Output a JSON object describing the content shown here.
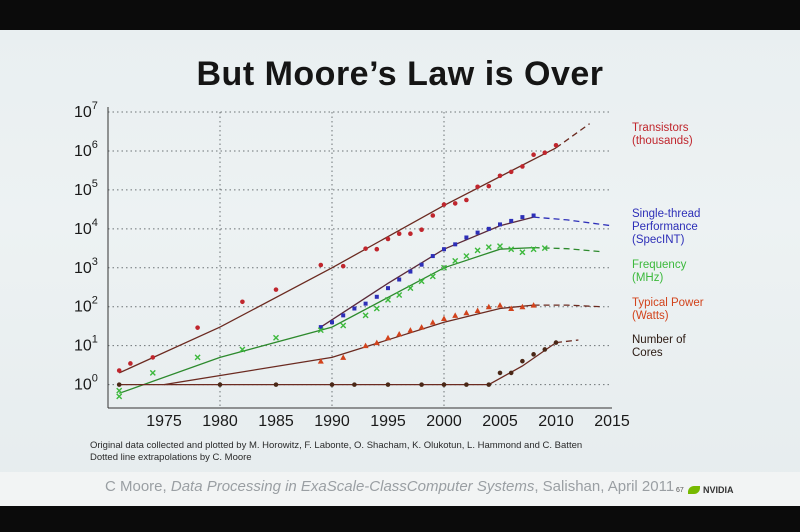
{
  "slide": {
    "title": "But Moore’s Law is Over",
    "credit_line1": "Original data collected and plotted by M. Horowitz, F. Labonte, O. Shacham, K. Olukotun, L. Hammond and C. Batten",
    "credit_line2": "Dotted line extrapolations by C. Moore",
    "citation_author": "C Moore, ",
    "citation_title": "Data Processing in ExaScale-ClassComputer Systems",
    "citation_rest": ", Salishan, April 2011",
    "slide_number": "67",
    "brand": "NVIDIA",
    "brand_icon": "nvidia-eye-icon"
  },
  "chart_data": {
    "type": "scatter",
    "title": "But Moore’s Law is Over",
    "xlim": [
      1970,
      2015
    ],
    "ylim_log10": [
      -0.6,
      7
    ],
    "y_scale": "log",
    "x_ticks": [
      "1975",
      "1980",
      "1985",
      "1990",
      "1995",
      "2000",
      "2005",
      "2010",
      "2015"
    ],
    "y_ticks": [
      {
        "base": "10",
        "exp": "0"
      },
      {
        "base": "10",
        "exp": "1"
      },
      {
        "base": "10",
        "exp": "2"
      },
      {
        "base": "10",
        "exp": "3"
      },
      {
        "base": "10",
        "exp": "4"
      },
      {
        "base": "10",
        "exp": "5"
      },
      {
        "base": "10",
        "exp": "6"
      },
      {
        "base": "10",
        "exp": "7"
      }
    ],
    "grid": "dotted",
    "legend_position": "right",
    "series": [
      {
        "name": "Transistors (thousands)",
        "label_lines": [
          "Transistors",
          "(thousands)"
        ],
        "color": "#c0262d",
        "marker": "dot",
        "points": [
          [
            1971,
            2.3
          ],
          [
            1972,
            3.5
          ],
          [
            1974,
            5
          ],
          [
            1978,
            29
          ],
          [
            1982,
            134
          ],
          [
            1985,
            275
          ],
          [
            1989,
            1180
          ],
          [
            1991,
            1100
          ],
          [
            1993,
            3100
          ],
          [
            1994,
            3000
          ],
          [
            1995,
            5500
          ],
          [
            1996,
            7500
          ],
          [
            1997,
            7500
          ],
          [
            1998,
            9500
          ],
          [
            1999,
            22000
          ],
          [
            2000,
            42000
          ],
          [
            2001,
            45000
          ],
          [
            2002,
            55000
          ],
          [
            2003,
            120000
          ],
          [
            2004,
            125000
          ],
          [
            2005,
            230000
          ],
          [
            2006,
            290000
          ],
          [
            2007,
            400000
          ],
          [
            2008,
            800000
          ],
          [
            2009,
            900000
          ],
          [
            2010,
            1400000
          ]
        ],
        "trend": [
          [
            1971,
            2
          ],
          [
            1980,
            30
          ],
          [
            1990,
            1000
          ],
          [
            2000,
            40000
          ],
          [
            2010,
            1200000
          ]
        ],
        "extrapolation": [
          [
            2010,
            1200000
          ],
          [
            2013,
            5000000
          ]
        ]
      },
      {
        "name": "Single-thread Performance (SpecINT)",
        "label_lines": [
          "Single-thread",
          "Performance",
          "(SpecINT)"
        ],
        "color": "#2d2fb8",
        "marker": "square",
        "points": [
          [
            1989,
            30
          ],
          [
            1990,
            40
          ],
          [
            1991,
            60
          ],
          [
            1992,
            90
          ],
          [
            1993,
            120
          ],
          [
            1994,
            180
          ],
          [
            1995,
            300
          ],
          [
            1996,
            500
          ],
          [
            1997,
            800
          ],
          [
            1998,
            1200
          ],
          [
            1999,
            2000
          ],
          [
            2000,
            3000
          ],
          [
            2001,
            4000
          ],
          [
            2002,
            6000
          ],
          [
            2003,
            8000
          ],
          [
            2004,
            10000
          ],
          [
            2005,
            13000
          ],
          [
            2006,
            16000
          ],
          [
            2007,
            20000
          ],
          [
            2008,
            22000
          ]
        ],
        "trend": [
          [
            1989,
            30
          ],
          [
            1995,
            400
          ],
          [
            2000,
            3000
          ],
          [
            2005,
            12000
          ],
          [
            2008,
            20000
          ]
        ],
        "extrapolation": [
          [
            2008,
            20000
          ],
          [
            2011,
            17000
          ],
          [
            2015,
            12000
          ]
        ]
      },
      {
        "name": "Frequency (MHz)",
        "label_lines": [
          "Frequency",
          "(MHz)"
        ],
        "color": "#3cb93c",
        "marker": "x",
        "points": [
          [
            1971,
            0.5
          ],
          [
            1971,
            0.7
          ],
          [
            1974,
            2
          ],
          [
            1978,
            5
          ],
          [
            1982,
            8
          ],
          [
            1985,
            16
          ],
          [
            1989,
            25
          ],
          [
            1991,
            33
          ],
          [
            1993,
            60
          ],
          [
            1994,
            90
          ],
          [
            1995,
            150
          ],
          [
            1996,
            200
          ],
          [
            1997,
            300
          ],
          [
            1998,
            450
          ],
          [
            1999,
            600
          ],
          [
            2000,
            1000
          ],
          [
            2001,
            1500
          ],
          [
            2002,
            2000
          ],
          [
            2003,
            2800
          ],
          [
            2004,
            3400
          ],
          [
            2005,
            3600
          ],
          [
            2006,
            3000
          ],
          [
            2007,
            2500
          ],
          [
            2008,
            3000
          ],
          [
            2009,
            3200
          ]
        ],
        "trend": [
          [
            1971,
            0.6
          ],
          [
            1980,
            5
          ],
          [
            1990,
            30
          ],
          [
            2000,
            1000
          ],
          [
            2005,
            3000
          ],
          [
            2008,
            3300
          ]
        ],
        "extrapolation": [
          [
            2008,
            3300
          ],
          [
            2011,
            3100
          ],
          [
            2014,
            2600
          ]
        ]
      },
      {
        "name": "Typical Power (Watts)",
        "label_lines": [
          "Typical Power",
          "(Watts)"
        ],
        "color": "#d2431c",
        "marker": "triangle",
        "points": [
          [
            1989,
            4
          ],
          [
            1991,
            5
          ],
          [
            1993,
            10
          ],
          [
            1994,
            12
          ],
          [
            1995,
            16
          ],
          [
            1996,
            20
          ],
          [
            1997,
            25
          ],
          [
            1998,
            30
          ],
          [
            1999,
            40
          ],
          [
            2000,
            50
          ],
          [
            2001,
            60
          ],
          [
            2002,
            70
          ],
          [
            2003,
            80
          ],
          [
            2004,
            100
          ],
          [
            2005,
            110
          ],
          [
            2006,
            90
          ],
          [
            2007,
            100
          ],
          [
            2008,
            110
          ]
        ],
        "trend": [
          [
            1975,
            1
          ],
          [
            1990,
            5
          ],
          [
            2000,
            40
          ],
          [
            2005,
            90
          ],
          [
            2008,
            110
          ]
        ],
        "extrapolation": [
          [
            2008,
            110
          ],
          [
            2011,
            110
          ],
          [
            2014,
            100
          ]
        ]
      },
      {
        "name": "Number of Cores",
        "label_lines": [
          "Number of",
          "Cores"
        ],
        "color": "#4a2716",
        "marker": "dot",
        "points": [
          [
            1971,
            1
          ],
          [
            1980,
            1
          ],
          [
            1985,
            1
          ],
          [
            1990,
            1
          ],
          [
            1992,
            1
          ],
          [
            1995,
            1
          ],
          [
            1998,
            1
          ],
          [
            2000,
            1
          ],
          [
            2002,
            1
          ],
          [
            2004,
            1
          ],
          [
            2005,
            2
          ],
          [
            2006,
            2
          ],
          [
            2007,
            4
          ],
          [
            2008,
            6
          ],
          [
            2009,
            8
          ],
          [
            2010,
            12
          ]
        ],
        "trend": [
          [
            1971,
            1
          ],
          [
            2004,
            1
          ],
          [
            2007,
            3
          ],
          [
            2010,
            12
          ]
        ],
        "extrapolation": [
          [
            2010,
            12
          ],
          [
            2012,
            14
          ]
        ]
      }
    ]
  }
}
